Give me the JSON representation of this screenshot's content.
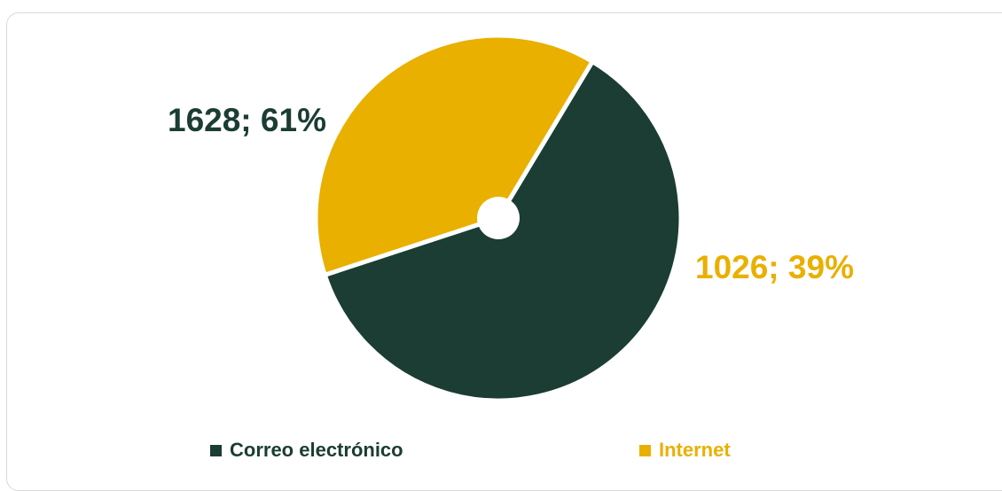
{
  "chart_data": {
    "type": "pie",
    "style": "donut-small-hole",
    "start_angle_deg": 31,
    "series": [
      {
        "name": "Correo electrónico",
        "value": 1628,
        "percent": 61,
        "label": "1628; 61%",
        "color": "#1b3d33"
      },
      {
        "name": "Internet",
        "value": 1026,
        "percent": 39,
        "label": "1026; 39%",
        "color": "#e9b000"
      }
    ],
    "legend_position": "bottom",
    "title": ""
  }
}
